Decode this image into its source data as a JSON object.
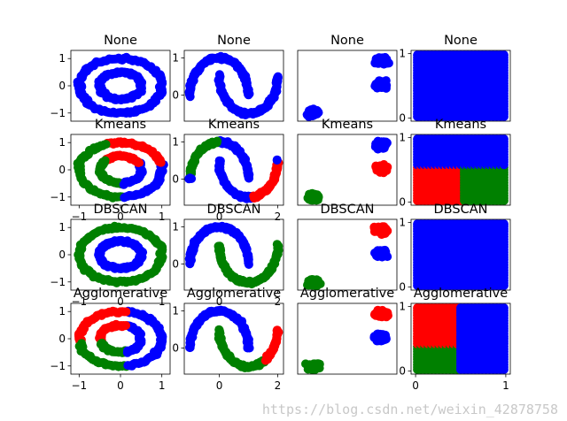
{
  "watermark": "https://blog.csdn.net/weixin_42878758",
  "colors": {
    "c0": "#0000ff",
    "c1": "#ff0000",
    "c2": "#008000",
    "text": "#000000"
  },
  "chart_data": [
    {
      "type": "scatter",
      "title": "None",
      "dataset": "circles",
      "method": "None",
      "xlim": [
        -1.2,
        1.2
      ],
      "ylim": [
        -1.3,
        1.3
      ],
      "yticks": [
        -1,
        0,
        1
      ],
      "xticks": [],
      "grid": false
    },
    {
      "type": "scatter",
      "title": "None",
      "dataset": "moons",
      "method": "None",
      "xlim": [
        -1.2,
        2.2
      ],
      "ylim": [
        -0.7,
        1.2
      ],
      "yticks": [
        0,
        1
      ],
      "xticks": [],
      "grid": false
    },
    {
      "type": "scatter",
      "title": "None",
      "dataset": "blobs",
      "method": "None",
      "xlim": [
        -0.6,
        1.0
      ],
      "ylim": [
        -1.3,
        1.4
      ],
      "yticks": [],
      "xticks": [],
      "grid": false
    },
    {
      "type": "scatter",
      "title": "None",
      "dataset": "uniform",
      "method": "None",
      "xlim": [
        -0.05,
        1.05
      ],
      "ylim": [
        -0.05,
        1.05
      ],
      "yticks": [
        0,
        1
      ],
      "xticks": [],
      "grid": false
    },
    {
      "type": "scatter",
      "title": "Kmeans",
      "dataset": "circles",
      "method": "Kmeans",
      "xlim": [
        -1.2,
        1.2
      ],
      "ylim": [
        -1.3,
        1.3
      ],
      "yticks": [
        -1,
        0,
        1
      ],
      "xticks": [
        -1,
        0,
        1
      ],
      "grid": false
    },
    {
      "type": "scatter",
      "title": "Kmeans",
      "dataset": "moons",
      "method": "Kmeans",
      "xlim": [
        -1.2,
        2.2
      ],
      "ylim": [
        -0.7,
        1.2
      ],
      "yticks": [
        0,
        1
      ],
      "xticks": [
        0,
        2
      ],
      "grid": false
    },
    {
      "type": "scatter",
      "title": "Kmeans",
      "dataset": "blobs",
      "method": "Kmeans",
      "xlim": [
        -0.6,
        1.0
      ],
      "ylim": [
        -1.3,
        1.4
      ],
      "yticks": [],
      "xticks": [],
      "grid": false
    },
    {
      "type": "scatter",
      "title": "Kmeans",
      "dataset": "uniform",
      "method": "Kmeans",
      "xlim": [
        -0.05,
        1.05
      ],
      "ylim": [
        -0.05,
        1.05
      ],
      "yticks": [
        0,
        1
      ],
      "xticks": [],
      "grid": false
    },
    {
      "type": "scatter",
      "title": "DBSCAN",
      "dataset": "circles",
      "method": "DBSCAN",
      "xlim": [
        -1.2,
        1.2
      ],
      "ylim": [
        -1.3,
        1.3
      ],
      "yticks": [
        -1,
        0,
        1
      ],
      "xticks": [
        -1,
        0,
        1
      ],
      "grid": false
    },
    {
      "type": "scatter",
      "title": "DBSCAN",
      "dataset": "moons",
      "method": "DBSCAN",
      "xlim": [
        -1.2,
        2.2
      ],
      "ylim": [
        -0.7,
        1.2
      ],
      "yticks": [
        0,
        1
      ],
      "xticks": [
        0,
        2
      ],
      "grid": false
    },
    {
      "type": "scatter",
      "title": "DBSCAN",
      "dataset": "blobs",
      "method": "DBSCAN",
      "xlim": [
        -0.6,
        1.0
      ],
      "ylim": [
        -1.3,
        1.4
      ],
      "yticks": [],
      "xticks": [],
      "grid": false
    },
    {
      "type": "scatter",
      "title": "DBSCAN",
      "dataset": "uniform",
      "method": "DBSCAN",
      "xlim": [
        -0.05,
        1.05
      ],
      "ylim": [
        -0.05,
        1.05
      ],
      "yticks": [
        0,
        1
      ],
      "xticks": [],
      "grid": false
    },
    {
      "type": "scatter",
      "title": "Agglomerative",
      "dataset": "circles",
      "method": "Agglomerative",
      "xlim": [
        -1.2,
        1.2
      ],
      "ylim": [
        -1.3,
        1.3
      ],
      "yticks": [
        -1,
        0,
        1
      ],
      "xticks": [
        -1,
        0,
        1
      ],
      "grid": false
    },
    {
      "type": "scatter",
      "title": "Agglomerative",
      "dataset": "moons",
      "method": "Agglomerative",
      "xlim": [
        -1.2,
        2.2
      ],
      "ylim": [
        -0.7,
        1.2
      ],
      "yticks": [
        0,
        1
      ],
      "xticks": [
        0,
        2
      ],
      "grid": false
    },
    {
      "type": "scatter",
      "title": "Agglomerative",
      "dataset": "blobs",
      "method": "Agglomerative",
      "xlim": [
        -0.6,
        1.0
      ],
      "ylim": [
        -1.3,
        1.4
      ],
      "yticks": [],
      "xticks": [],
      "grid": false
    },
    {
      "type": "scatter",
      "title": "Agglomerative",
      "dataset": "uniform",
      "method": "Agglomerative",
      "xlim": [
        -0.05,
        1.05
      ],
      "ylim": [
        -0.05,
        1.05
      ],
      "yticks": [
        0,
        1
      ],
      "xticks": [
        0,
        1
      ],
      "grid": false
    }
  ]
}
